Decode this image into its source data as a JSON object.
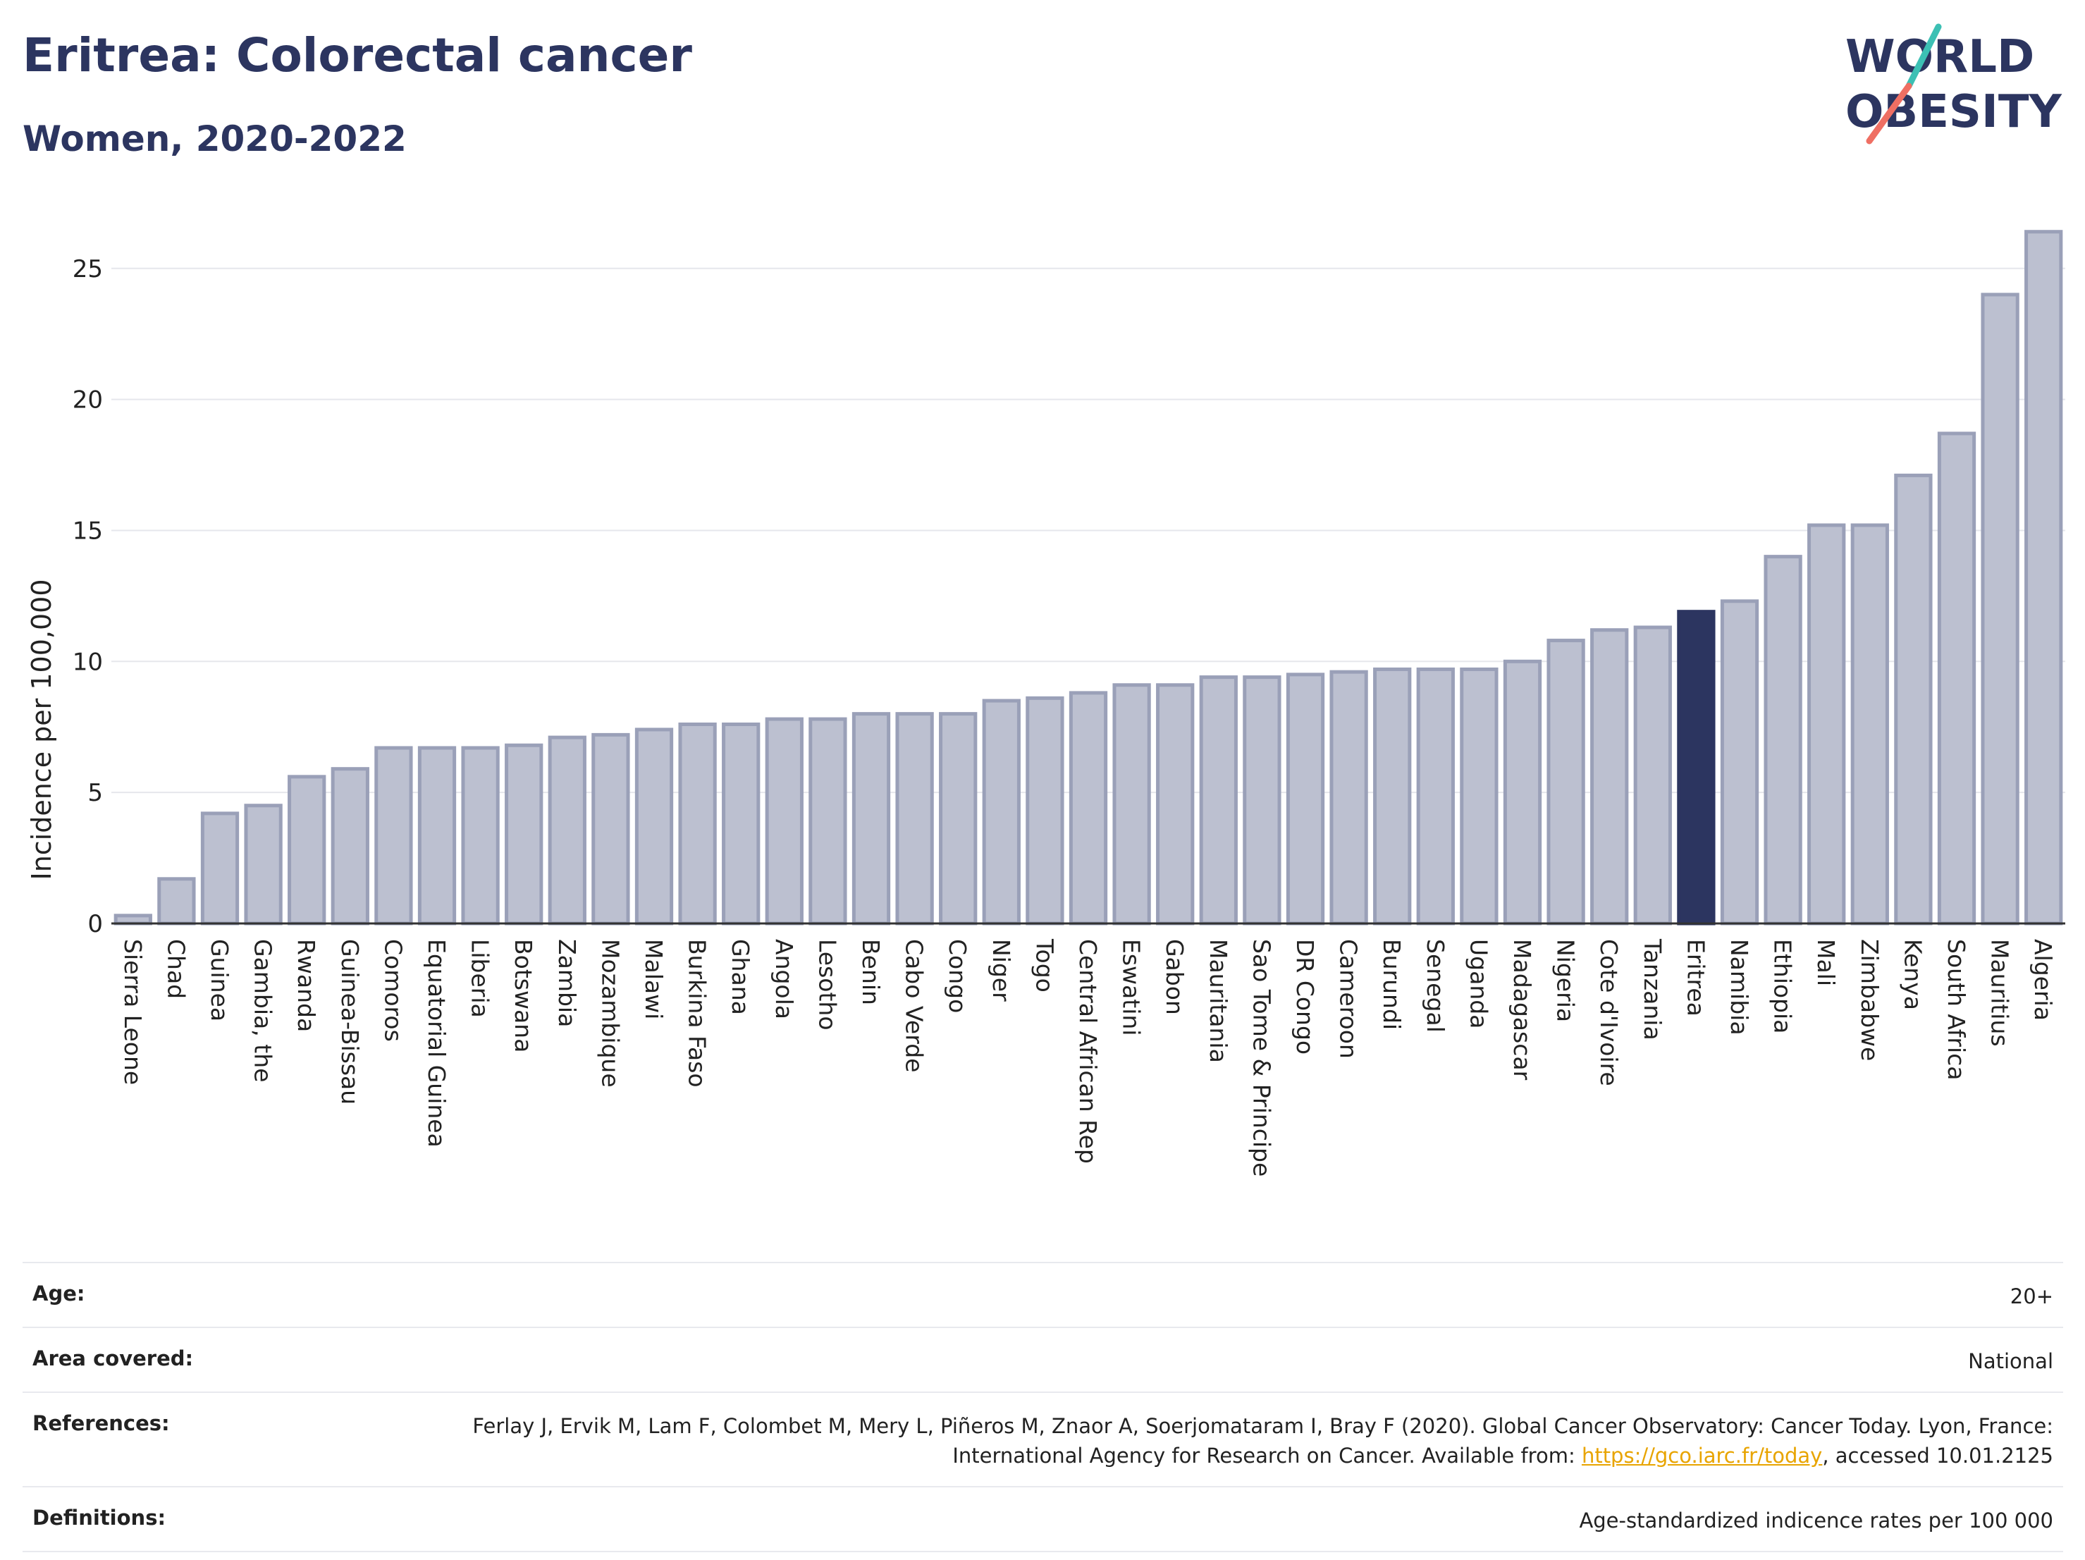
{
  "title": "Eritrea: Colorectal cancer",
  "subtitle": "Women, 2020-2022",
  "logo": {
    "line1": "WORLD",
    "line2": "OBESITY",
    "icon": "world-obesity-slash-logo"
  },
  "colors": {
    "bar_default": "#bcc0d0",
    "bar_border": "#9aa0b8",
    "bar_highlight": "#2c3560",
    "title": "#2c3560",
    "link": "#e8a400",
    "logo_teal": "#3cc0b4",
    "logo_coral": "#ef6f63"
  },
  "chart_data": {
    "type": "bar",
    "ylabel": "Incidence per 100,000",
    "xlabel": "",
    "ylim": [
      0,
      26.5
    ],
    "yticks": [
      0,
      5,
      10,
      15,
      20,
      25
    ],
    "grid": true,
    "highlight": "Eritrea",
    "categories": [
      "Sierra Leone",
      "Chad",
      "Guinea",
      "Gambia, the",
      "Rwanda",
      "Guinea-Bissau",
      "Comoros",
      "Equatorial Guinea",
      "Liberia",
      "Botswana",
      "Zambia",
      "Mozambique",
      "Malawi",
      "Burkina Faso",
      "Ghana",
      "Angola",
      "Lesotho",
      "Benin",
      "Cabo Verde",
      "Congo",
      "Niger",
      "Togo",
      "Central African Rep",
      "Eswatini",
      "Gabon",
      "Mauritania",
      "Sao Tome & Principe",
      "DR Congo",
      "Cameroon",
      "Burundi",
      "Senegal",
      "Uganda",
      "Madagascar",
      "Nigeria",
      "Cote d'Ivoire",
      "Tanzania",
      "Eritrea",
      "Namibia",
      "Ethiopia",
      "Mali",
      "Zimbabwe",
      "Kenya",
      "South Africa",
      "Mauritius",
      "Algeria"
    ],
    "values": [
      0.3,
      1.7,
      4.2,
      4.5,
      5.6,
      5.9,
      6.7,
      6.7,
      6.7,
      6.8,
      7.1,
      7.2,
      7.4,
      7.6,
      7.6,
      7.8,
      7.8,
      8.0,
      8.0,
      8.0,
      8.5,
      8.6,
      8.8,
      9.1,
      9.1,
      9.4,
      9.4,
      9.5,
      9.6,
      9.7,
      9.7,
      9.7,
      10.0,
      10.8,
      11.2,
      11.3,
      11.9,
      12.3,
      14.0,
      15.2,
      15.2,
      17.1,
      18.7,
      24.0,
      26.4
    ]
  },
  "meta": [
    {
      "label": "Age:",
      "value": "20+"
    },
    {
      "label": "Area covered:",
      "value": "National"
    },
    {
      "label": "References:",
      "value_pre": "Ferlay J, Ervik M, Lam F, Colombet M, Mery L, Piñeros M, Znaor A, Soerjomataram I, Bray F (2020). Global Cancer Observatory: Cancer Today. Lyon, France: International Agency for Research on Cancer. Available from: ",
      "link": "https://gco.iarc.fr/today",
      "value_post": ", accessed 10.01.2125"
    },
    {
      "label": "Definitions:",
      "value": "Age-standardized indicence rates per 100 000"
    }
  ]
}
